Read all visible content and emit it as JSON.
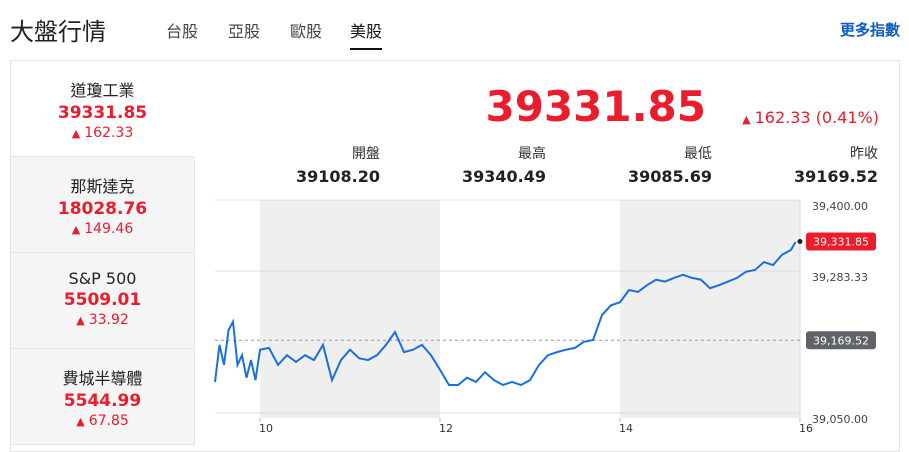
{
  "header": {
    "title": "大盤行情",
    "tabs": [
      "台股",
      "亞股",
      "歐股",
      "美股"
    ],
    "active_tab": 3,
    "link": "更多指數"
  },
  "sidebar": [
    {
      "name": "道瓊工業",
      "price": "39331.85",
      "change": "162.33"
    },
    {
      "name": "那斯達克",
      "price": "18028.76",
      "change": "149.46"
    },
    {
      "name": "S&P 500",
      "price": "5509.01",
      "change": "33.92"
    },
    {
      "name": "費城半導體",
      "price": "5544.99",
      "change": "67.85"
    }
  ],
  "quote": {
    "price": "39331.85",
    "change": "162.33 (0.41%)",
    "stats": [
      {
        "label": "開盤",
        "value": "39108.20"
      },
      {
        "label": "最高",
        "value": "39340.49"
      },
      {
        "label": "最低",
        "value": "39085.69"
      },
      {
        "label": "昨收",
        "value": "39169.52"
      }
    ]
  },
  "chart_data": {
    "type": "line",
    "color": "#1a6fe0",
    "x": [
      9.5,
      9.55,
      9.6,
      9.65,
      9.7,
      9.75,
      9.8,
      9.85,
      9.9,
      9.95,
      10.0,
      10.1,
      10.2,
      10.3,
      10.4,
      10.5,
      10.6,
      10.7,
      10.8,
      10.9,
      11.0,
      11.1,
      11.2,
      11.3,
      11.4,
      11.5,
      11.6,
      11.7,
      11.8,
      11.9,
      12.0,
      12.1,
      12.2,
      12.3,
      12.4,
      12.5,
      12.6,
      12.7,
      12.8,
      12.9,
      13.0,
      13.1,
      13.2,
      13.3,
      13.4,
      13.5,
      13.6,
      13.7,
      13.8,
      13.9,
      14.0,
      14.1,
      14.2,
      14.3,
      14.4,
      14.5,
      14.6,
      14.7,
      14.8,
      14.9,
      15.0,
      15.1,
      15.2,
      15.3,
      15.4,
      15.5,
      15.6,
      15.7,
      15.8,
      15.9,
      15.95
    ],
    "values": [
      39101,
      39162,
      39129,
      39186,
      39200,
      39129,
      39145,
      39108,
      39137,
      39104,
      39154,
      39157,
      39129,
      39145,
      39134,
      39145,
      39137,
      39162,
      39104,
      39137,
      39154,
      39140,
      39137,
      39145,
      39162,
      39183,
      39150,
      39154,
      39162,
      39145,
      39121,
      39096,
      39096,
      39108,
      39101,
      39117,
      39104,
      39096,
      39101,
      39096,
      39104,
      39129,
      39145,
      39150,
      39154,
      39157,
      39167,
      39170,
      39211,
      39227,
      39232,
      39252,
      39249,
      39260,
      39269,
      39266,
      39272,
      39277,
      39272,
      39269,
      39255,
      39260,
      39266,
      39272,
      39282,
      39285,
      39298,
      39293,
      39310,
      39318,
      39331
    ],
    "xlim": [
      9.5,
      16
    ],
    "xticks": [
      10,
      12,
      14,
      16
    ],
    "shaded_bands": [
      [
        10,
        12
      ],
      [
        14,
        16
      ]
    ],
    "ylim": [
      39050,
      39400
    ],
    "yticks": [
      {
        "value": 39400,
        "label": "39,400.00"
      },
      {
        "value": 39283.33,
        "label": "39,283.33"
      },
      {
        "value": 39050,
        "label": "39,050.00"
      }
    ],
    "reference_line": {
      "value": 39169.52,
      "label": "39,169.52"
    },
    "last_value": {
      "value": 39331.85,
      "label": "39,331.85"
    },
    "grid": true
  }
}
